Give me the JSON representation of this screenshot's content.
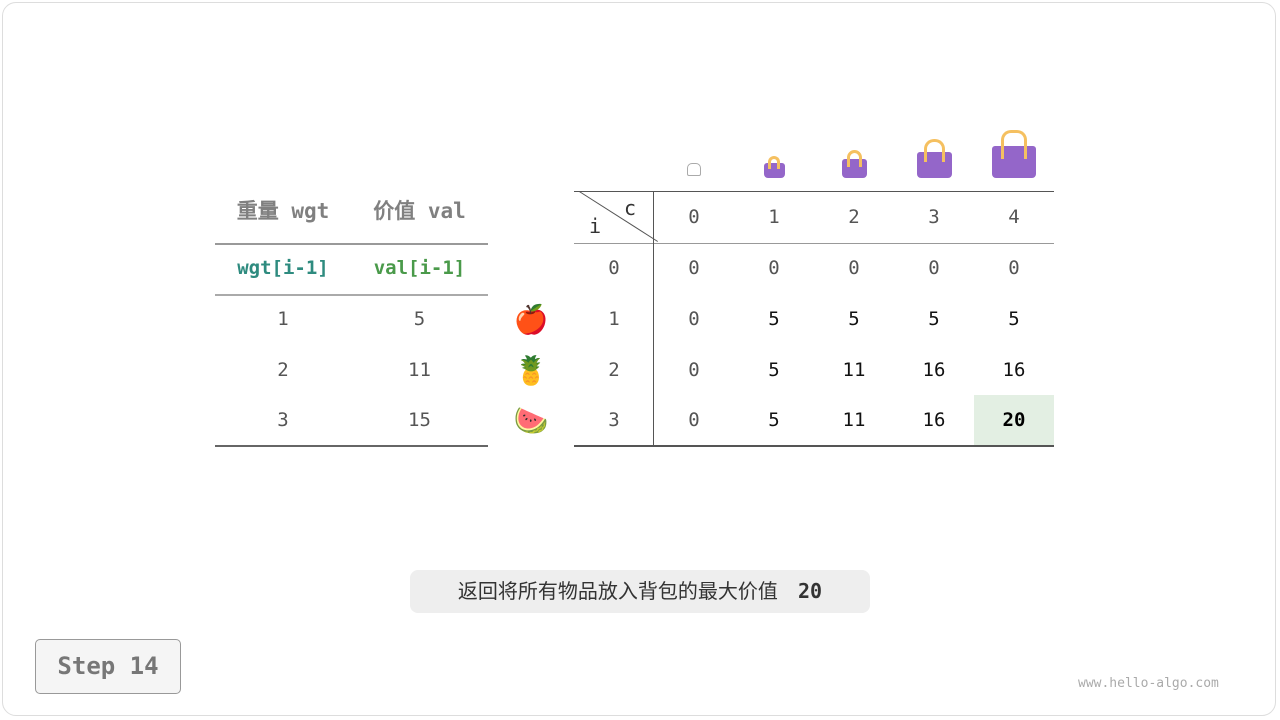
{
  "items_table": {
    "headers": [
      "重量 wgt",
      "价值 val"
    ],
    "subheaders": [
      "wgt[i-1]",
      "val[i-1]"
    ],
    "rows": [
      [
        "1",
        "5"
      ],
      [
        "2",
        "11"
      ],
      [
        "3",
        "15"
      ]
    ],
    "icons": [
      "apple-icon",
      "pineapple-icon",
      "watermelon-icon"
    ]
  },
  "dp_table": {
    "corner_col": "c",
    "corner_row": "i",
    "col_headers": [
      "0",
      "1",
      "2",
      "3",
      "4"
    ],
    "row_headers": [
      "0",
      "1",
      "2",
      "3"
    ],
    "rows": [
      [
        "0",
        "0",
        "0",
        "0",
        "0"
      ],
      [
        "0",
        "5",
        "5",
        "5",
        "5"
      ],
      [
        "0",
        "5",
        "11",
        "16",
        "16"
      ],
      [
        "0",
        "5",
        "11",
        "16",
        "20"
      ]
    ],
    "highlight": "20",
    "highlight_color": "#e3efe3"
  },
  "caption": {
    "text": "返回将所有物品放入背包的最大价值",
    "value": "20"
  },
  "step": "Step 14",
  "watermark": "www.hello-algo.com",
  "colors": {
    "wgt": "#2e8b7f",
    "val": "#4a9a4a",
    "bag": "#9466c9"
  }
}
